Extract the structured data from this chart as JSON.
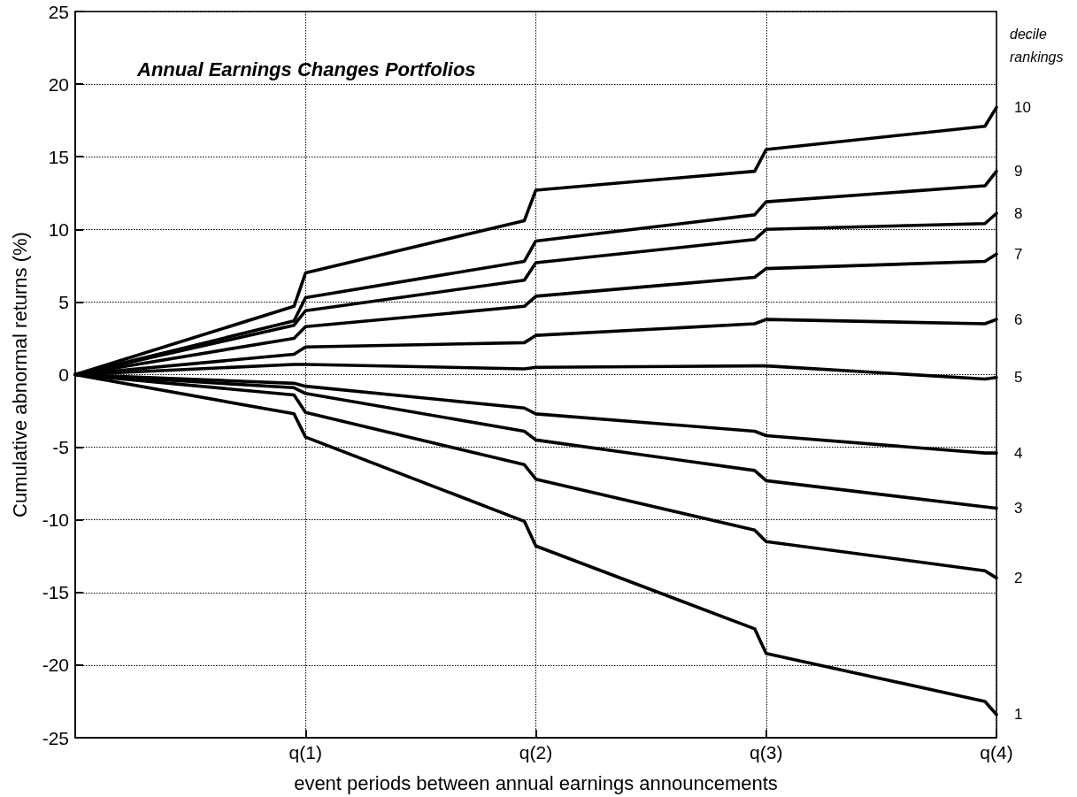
{
  "chart_data": {
    "type": "line",
    "title": "Annual Earnings Changes Portfolios",
    "xlabel": "event periods between annual earnings announcements",
    "ylabel": "Cumulative abnormal returns (%)",
    "legend_title": "decile rankings",
    "categories": [
      null,
      null,
      null,
      null,
      null,
      null,
      null,
      null,
      null,
      null,
      null,
      null,
      null,
      null,
      null,
      null,
      null,
      null,
      null,
      null,
      "q(1)",
      null,
      null,
      null,
      null,
      null,
      null,
      null,
      null,
      null,
      null,
      null,
      null,
      null,
      null,
      null,
      null,
      null,
      null,
      null,
      "q(2)",
      null,
      null,
      null,
      null,
      null,
      null,
      null,
      null,
      null,
      null,
      null,
      null,
      null,
      null,
      null,
      null,
      null,
      null,
      null,
      "q(3)",
      null,
      null,
      null,
      null,
      null,
      null,
      null,
      null,
      null,
      null,
      null,
      null,
      null,
      null,
      null,
      null,
      null,
      null,
      null,
      "q(4)"
    ],
    "series": [
      {
        "name": "10",
        "color": "#000000",
        "values": [
          0,
          null,
          null,
          null,
          null,
          null,
          null,
          null,
          null,
          null,
          null,
          null,
          null,
          null,
          null,
          null,
          null,
          null,
          null,
          4.7,
          7.0,
          null,
          null,
          null,
          null,
          null,
          null,
          null,
          null,
          null,
          null,
          null,
          null,
          null,
          null,
          null,
          null,
          null,
          null,
          10.6,
          12.7,
          null,
          null,
          null,
          null,
          null,
          null,
          null,
          null,
          null,
          null,
          null,
          null,
          null,
          null,
          null,
          null,
          null,
          null,
          14.0,
          15.5,
          null,
          null,
          null,
          null,
          null,
          null,
          null,
          null,
          null,
          null,
          null,
          null,
          null,
          null,
          null,
          null,
          null,
          null,
          17.1,
          18.4
        ]
      },
      {
        "name": "9",
        "color": "#000000",
        "values": [
          0,
          null,
          null,
          null,
          null,
          null,
          null,
          null,
          null,
          null,
          null,
          null,
          null,
          null,
          null,
          null,
          null,
          null,
          null,
          3.7,
          5.3,
          null,
          null,
          null,
          null,
          null,
          null,
          null,
          null,
          null,
          null,
          null,
          null,
          null,
          null,
          null,
          null,
          null,
          null,
          7.8,
          9.2,
          null,
          null,
          null,
          null,
          null,
          null,
          null,
          null,
          null,
          null,
          null,
          null,
          null,
          null,
          null,
          null,
          null,
          null,
          11.0,
          11.9,
          null,
          null,
          null,
          null,
          null,
          null,
          null,
          null,
          null,
          null,
          null,
          null,
          null,
          null,
          null,
          null,
          null,
          null,
          13.0,
          14.0
        ]
      },
      {
        "name": "8",
        "color": "#000000",
        "values": [
          0,
          null,
          null,
          null,
          null,
          null,
          null,
          null,
          null,
          null,
          null,
          null,
          null,
          null,
          null,
          null,
          null,
          null,
          null,
          3.4,
          4.4,
          null,
          null,
          null,
          null,
          null,
          null,
          null,
          null,
          null,
          null,
          null,
          null,
          null,
          null,
          null,
          null,
          null,
          null,
          6.5,
          7.7,
          null,
          null,
          null,
          null,
          null,
          null,
          null,
          null,
          null,
          null,
          null,
          null,
          null,
          null,
          null,
          null,
          null,
          null,
          9.3,
          10.0,
          null,
          null,
          null,
          null,
          null,
          null,
          null,
          null,
          null,
          null,
          null,
          null,
          null,
          null,
          null,
          null,
          null,
          null,
          10.4,
          11.1
        ]
      },
      {
        "name": "7",
        "color": "#000000",
        "values": [
          0,
          null,
          null,
          null,
          null,
          null,
          null,
          null,
          null,
          null,
          null,
          null,
          null,
          null,
          null,
          null,
          null,
          null,
          null,
          2.5,
          3.3,
          null,
          null,
          null,
          null,
          null,
          null,
          null,
          null,
          null,
          null,
          null,
          null,
          null,
          null,
          null,
          null,
          null,
          null,
          4.7,
          5.4,
          null,
          null,
          null,
          null,
          null,
          null,
          null,
          null,
          null,
          null,
          null,
          null,
          null,
          null,
          null,
          null,
          null,
          null,
          6.7,
          7.3,
          null,
          null,
          null,
          null,
          null,
          null,
          null,
          null,
          null,
          null,
          null,
          null,
          null,
          null,
          null,
          null,
          null,
          null,
          7.8,
          8.3
        ]
      },
      {
        "name": "6",
        "color": "#000000",
        "values": [
          0,
          null,
          null,
          null,
          null,
          null,
          null,
          null,
          null,
          null,
          null,
          null,
          null,
          null,
          null,
          null,
          null,
          null,
          null,
          1.4,
          1.9,
          null,
          null,
          null,
          null,
          null,
          null,
          null,
          null,
          null,
          null,
          null,
          null,
          null,
          null,
          null,
          null,
          null,
          null,
          2.2,
          2.7,
          null,
          null,
          null,
          null,
          null,
          null,
          null,
          null,
          null,
          null,
          null,
          null,
          null,
          null,
          null,
          null,
          null,
          null,
          3.5,
          3.8,
          null,
          null,
          null,
          null,
          null,
          null,
          null,
          null,
          null,
          null,
          null,
          null,
          null,
          null,
          null,
          null,
          null,
          null,
          3.5,
          3.8
        ]
      },
      {
        "name": "5",
        "color": "#000000",
        "values": [
          0,
          null,
          null,
          null,
          null,
          null,
          null,
          null,
          null,
          null,
          null,
          null,
          null,
          null,
          null,
          null,
          null,
          null,
          null,
          0.7,
          0.7,
          null,
          null,
          null,
          null,
          null,
          null,
          null,
          null,
          null,
          null,
          null,
          null,
          null,
          null,
          null,
          null,
          null,
          null,
          0.4,
          0.5,
          null,
          null,
          null,
          null,
          null,
          null,
          null,
          null,
          null,
          null,
          null,
          null,
          null,
          null,
          null,
          null,
          null,
          null,
          0.6,
          0.6,
          null,
          null,
          null,
          null,
          null,
          null,
          null,
          null,
          null,
          null,
          null,
          null,
          null,
          null,
          null,
          null,
          null,
          null,
          -0.3,
          -0.2
        ]
      },
      {
        "name": "4",
        "color": "#000000",
        "values": [
          0,
          null,
          null,
          null,
          null,
          null,
          null,
          null,
          null,
          null,
          null,
          null,
          null,
          null,
          null,
          null,
          null,
          null,
          null,
          -0.6,
          -0.8,
          null,
          null,
          null,
          null,
          null,
          null,
          null,
          null,
          null,
          null,
          null,
          null,
          null,
          null,
          null,
          null,
          null,
          null,
          -2.3,
          -2.7,
          null,
          null,
          null,
          null,
          null,
          null,
          null,
          null,
          null,
          null,
          null,
          null,
          null,
          null,
          null,
          null,
          null,
          null,
          -3.9,
          -4.2,
          null,
          null,
          null,
          null,
          null,
          null,
          null,
          null,
          null,
          null,
          null,
          null,
          null,
          null,
          null,
          null,
          null,
          null,
          -5.4,
          -5.4
        ]
      },
      {
        "name": "3",
        "color": "#000000",
        "values": [
          0,
          null,
          null,
          null,
          null,
          null,
          null,
          null,
          null,
          null,
          null,
          null,
          null,
          null,
          null,
          null,
          null,
          null,
          null,
          -0.9,
          -1.3,
          null,
          null,
          null,
          null,
          null,
          null,
          null,
          null,
          null,
          null,
          null,
          null,
          null,
          null,
          null,
          null,
          null,
          null,
          -3.9,
          -4.5,
          null,
          null,
          null,
          null,
          null,
          null,
          null,
          null,
          null,
          null,
          null,
          null,
          null,
          null,
          null,
          null,
          null,
          null,
          -6.6,
          -7.3,
          null,
          null,
          null,
          null,
          null,
          null,
          null,
          null,
          null,
          null,
          null,
          null,
          null,
          null,
          null,
          null,
          null,
          null,
          -9.1,
          -9.2
        ]
      },
      {
        "name": "2",
        "color": "#000000",
        "values": [
          0,
          null,
          null,
          null,
          null,
          null,
          null,
          null,
          null,
          null,
          null,
          null,
          null,
          null,
          null,
          null,
          null,
          null,
          null,
          -1.4,
          -2.6,
          null,
          null,
          null,
          null,
          null,
          null,
          null,
          null,
          null,
          null,
          null,
          null,
          null,
          null,
          null,
          null,
          null,
          null,
          -6.2,
          -7.2,
          null,
          null,
          null,
          null,
          null,
          null,
          null,
          null,
          null,
          null,
          null,
          null,
          null,
          null,
          null,
          null,
          null,
          null,
          -10.7,
          -11.5,
          null,
          null,
          null,
          null,
          null,
          null,
          null,
          null,
          null,
          null,
          null,
          null,
          null,
          null,
          null,
          null,
          null,
          null,
          -13.5,
          -14.0
        ]
      },
      {
        "name": "1",
        "color": "#000000",
        "values": [
          0,
          null,
          null,
          null,
          null,
          null,
          null,
          null,
          null,
          null,
          null,
          null,
          null,
          null,
          null,
          null,
          null,
          null,
          null,
          -2.7,
          -4.3,
          null,
          null,
          null,
          null,
          null,
          null,
          null,
          null,
          null,
          null,
          null,
          null,
          null,
          null,
          null,
          null,
          null,
          null,
          -10.1,
          -11.8,
          null,
          null,
          null,
          null,
          null,
          null,
          null,
          null,
          null,
          null,
          null,
          null,
          null,
          null,
          null,
          null,
          null,
          null,
          -17.5,
          -19.2,
          null,
          null,
          null,
          null,
          null,
          null,
          null,
          null,
          null,
          null,
          null,
          null,
          null,
          null,
          null,
          null,
          null,
          null,
          -22.5,
          -23.4
        ]
      }
    ],
    "ylim": [
      -25,
      25
    ],
    "yticks": [
      -25,
      -20,
      -15,
      -10,
      -5,
      0,
      5,
      10,
      15,
      20,
      25
    ],
    "grid": true,
    "marker": "none",
    "line_style": "solid"
  }
}
